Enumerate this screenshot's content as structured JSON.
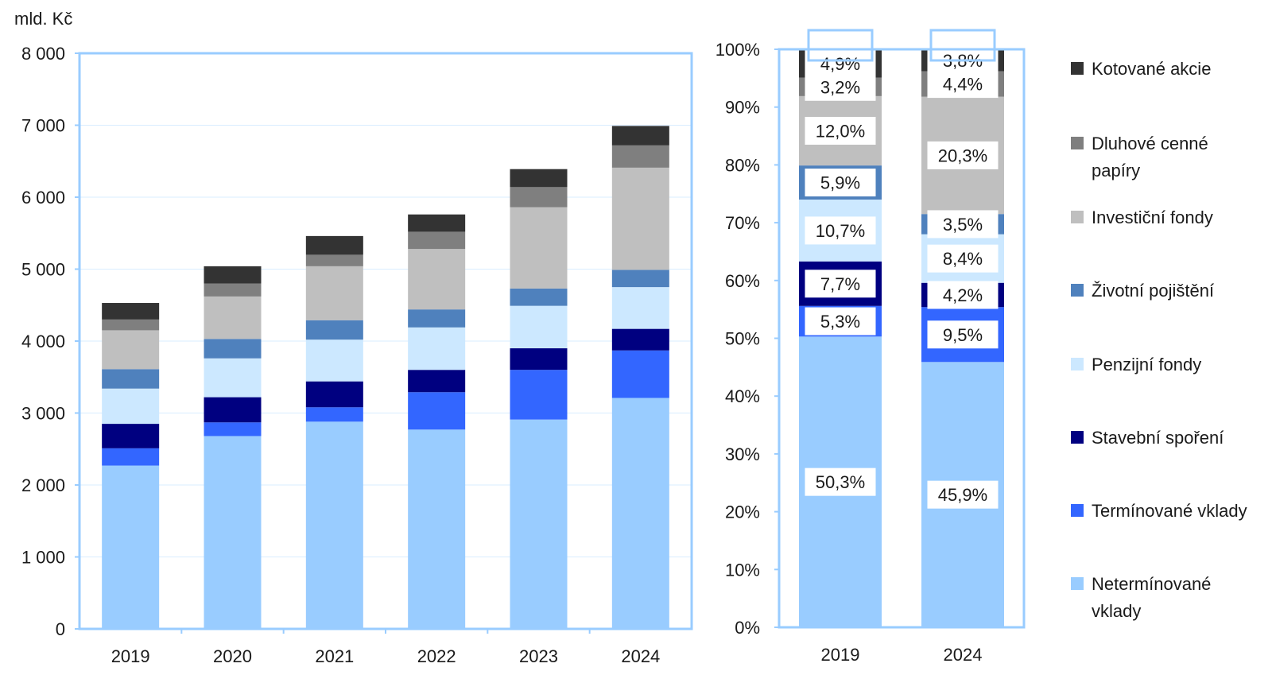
{
  "colors": {
    "axis": "#99ccff",
    "grid": "#d9ecff",
    "series": [
      "#99ccff",
      "#3366ff",
      "#000080",
      "#cce8ff",
      "#4f81bd",
      "#bfbfbf",
      "#7f7f7f",
      "#333333"
    ]
  },
  "chart_data": [
    {
      "type": "bar",
      "stacked": true,
      "unit_label": "mld. Kč",
      "categories": [
        "2019",
        "2020",
        "2021",
        "2022",
        "2023",
        "2024"
      ],
      "ylim": [
        0,
        8000
      ],
      "yticks": [
        0,
        1000,
        2000,
        3000,
        4000,
        5000,
        6000,
        7000,
        8000
      ],
      "ytick_labels": [
        "0",
        "1 000",
        "2 000",
        "3 000",
        "4 000",
        "5 000",
        "6 000",
        "7 000",
        "8 000"
      ],
      "grid": true,
      "series": [
        {
          "name": "Netermínované vklady",
          "values": [
            2270,
            2680,
            2880,
            2770,
            2910,
            3210
          ]
        },
        {
          "name": "Termínované vklady",
          "values": [
            240,
            190,
            200,
            520,
            690,
            660
          ]
        },
        {
          "name": "Stavební spoření",
          "values": [
            340,
            350,
            360,
            310,
            300,
            300
          ]
        },
        {
          "name": "Penzijní fondy",
          "values": [
            490,
            540,
            580,
            590,
            590,
            580
          ]
        },
        {
          "name": "Životní pojištění",
          "values": [
            270,
            270,
            270,
            250,
            240,
            240
          ]
        },
        {
          "name": "Investiční fondy",
          "values": [
            540,
            590,
            750,
            840,
            1130,
            1420
          ]
        },
        {
          "name": "Dluhové cenné papíry",
          "values": [
            150,
            180,
            160,
            240,
            280,
            310
          ]
        },
        {
          "name": "Kotované akcie",
          "values": [
            230,
            240,
            260,
            240,
            250,
            270
          ]
        }
      ]
    },
    {
      "type": "bar",
      "stacked": true,
      "percent": true,
      "categories": [
        "2019",
        "2024"
      ],
      "ylim": [
        0,
        100
      ],
      "yticks": [
        0,
        10,
        20,
        30,
        40,
        50,
        60,
        70,
        80,
        90,
        100
      ],
      "ytick_labels": [
        "0%",
        "10%",
        "20%",
        "30%",
        "40%",
        "50%",
        "60%",
        "70%",
        "80%",
        "90%",
        "100%"
      ],
      "series": [
        {
          "name": "Netermínované vklady",
          "values": [
            50.3,
            45.9
          ],
          "labels": [
            "50,3%",
            "45,9%"
          ]
        },
        {
          "name": "Termínované vklady",
          "values": [
            5.3,
            9.5
          ],
          "labels": [
            "5,3%",
            "9,5%"
          ]
        },
        {
          "name": "Stavební spoření",
          "values": [
            7.7,
            4.2
          ],
          "labels": [
            "7,7%",
            "4,2%"
          ]
        },
        {
          "name": "Penzijní fondy",
          "values": [
            10.7,
            8.4
          ],
          "labels": [
            "10,7%",
            "8,4%"
          ]
        },
        {
          "name": "Životní pojištění",
          "values": [
            5.9,
            3.5
          ],
          "labels": [
            "5,9%",
            "3,5%"
          ]
        },
        {
          "name": "Investiční fondy",
          "values": [
            12.0,
            20.3
          ],
          "labels": [
            "12,0%",
            "20,3%"
          ]
        },
        {
          "name": "Dluhové cenné papíry",
          "values": [
            3.2,
            4.4
          ],
          "labels": [
            "3,2%",
            "4,4%"
          ]
        },
        {
          "name": "Kotované akcie",
          "values": [
            4.9,
            3.8
          ],
          "labels": [
            "4,9%",
            "3,8%"
          ]
        }
      ]
    }
  ],
  "legend": {
    "placement": "right",
    "items": [
      {
        "label": "Kotované akcie",
        "color": "#333333"
      },
      {
        "label": "Dluhové cenné papíry",
        "color": "#7f7f7f"
      },
      {
        "label": "Investiční fondy",
        "color": "#bfbfbf"
      },
      {
        "label": "Životní pojištění",
        "color": "#4f81bd"
      },
      {
        "label": "Penzijní fondy",
        "color": "#cce8ff"
      },
      {
        "label": "Stavební spoření",
        "color": "#000080"
      },
      {
        "label": "Termínované vklady",
        "color": "#3366ff"
      },
      {
        "label": "Netermínované vklady",
        "color": "#99ccff"
      }
    ]
  }
}
